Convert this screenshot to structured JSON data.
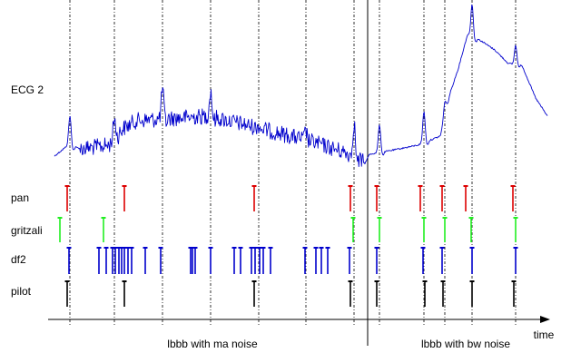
{
  "chart_data": {
    "type": "line",
    "title": "",
    "xlabel": "time",
    "ylabel": "",
    "xlim": [
      0,
      630
    ],
    "grid": false,
    "divider_x": 405,
    "segments": [
      {
        "label": "lbbb with ma noise",
        "center_x": 234
      },
      {
        "label": "lbbb with bw noise",
        "center_x": 513
      }
    ],
    "beats": [
      77,
      126,
      179,
      232,
      285,
      337,
      390,
      418,
      467,
      490,
      520,
      568
    ],
    "ecg": {
      "name": "ECG 2",
      "color": "#0000cc",
      "knots": [
        [
          60,
          172
        ],
        [
          75,
          160
        ],
        [
          90,
          164
        ],
        [
          120,
          160
        ],
        [
          135,
          142
        ],
        [
          150,
          133
        ],
        [
          180,
          131
        ],
        [
          230,
          128
        ],
        [
          260,
          135
        ],
        [
          300,
          145
        ],
        [
          340,
          155
        ],
        [
          380,
          168
        ],
        [
          395,
          175
        ],
        [
          402,
          180
        ],
        [
          407,
          170
        ],
        [
          430,
          166
        ],
        [
          460,
          160
        ],
        [
          485,
          150
        ],
        [
          495,
          105
        ],
        [
          505,
          75
        ],
        [
          515,
          38
        ],
        [
          530,
          45
        ],
        [
          545,
          55
        ],
        [
          560,
          70
        ],
        [
          575,
          72
        ],
        [
          590,
          108
        ],
        [
          603,
          128
        ]
      ],
      "peaks": [
        [
          77,
          128
        ],
        [
          126,
          130
        ],
        [
          179,
          98
        ],
        [
          232,
          100
        ],
        [
          285,
          138
        ],
        [
          337,
          145
        ],
        [
          390,
          135
        ],
        [
          418,
          138
        ],
        [
          467,
          123
        ],
        [
          490,
          112
        ],
        [
          520,
          5
        ],
        [
          568,
          50
        ]
      ],
      "noise_ranges": [
        [
          88,
          400,
          9
        ]
      ]
    },
    "series": [
      {
        "name": "pan",
        "color": "#dd0000",
        "y_top": 205,
        "y_bottom": 233,
        "marks": [
          74,
          137,
          280,
          386,
          415,
          463,
          487,
          513,
          565
        ]
      },
      {
        "name": "gritzali",
        "color": "#22ee22",
        "y_top": 240,
        "y_bottom": 267,
        "marks": [
          66,
          114,
          389,
          418,
          467,
          490,
          519,
          568
        ]
      },
      {
        "name": "df2",
        "color": "#0000cc",
        "y_top": 273,
        "y_bottom": 302,
        "marks": [
          76,
          109,
          117,
          124,
          127,
          131,
          134,
          137,
          141,
          145,
          160,
          177,
          210,
          212,
          215,
          232,
          258,
          265,
          277,
          281,
          286,
          290,
          298,
          336,
          348,
          354,
          361,
          385,
          415,
          466,
          487,
          520,
          568
        ]
      },
      {
        "name": "pilot",
        "color": "#000000",
        "y_top": 310,
        "y_bottom": 338,
        "marks": [
          74,
          137,
          280,
          386,
          415,
          468,
          488,
          520,
          566
        ]
      }
    ]
  }
}
